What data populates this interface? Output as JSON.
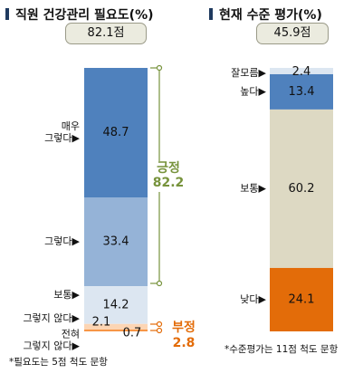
{
  "chart_data": [
    {
      "type": "stacked_bar",
      "title": "직원 건강관리 필요도(%)",
      "summary": "82.1점",
      "unit": "%",
      "segments": [
        {
          "label": "매우\n그렇다▶",
          "value": 48.7,
          "color": "#4f81bd"
        },
        {
          "label": "그렇다▶",
          "value": 33.4,
          "color": "#95b3d7"
        },
        {
          "label": "보통▶",
          "value": 14.2,
          "color": "#dce6f1"
        },
        {
          "label": "그렇지 않다▶",
          "value": 2.1,
          "color": "#fcd5b4"
        },
        {
          "label": "전혀\n그렇지 않다▶",
          "value": 0.7,
          "color": "#f79646"
        }
      ],
      "groups": [
        {
          "label": "긍정",
          "value": "82.2",
          "color": "#77933c"
        },
        {
          "label": "부정",
          "value": "2.8",
          "color": "#e36c09"
        }
      ],
      "footnote": "*필요도는 5점 척도 문항"
    },
    {
      "type": "stacked_bar",
      "title": "현재 수준 평가(%)",
      "summary": "45.9점",
      "unit": "%",
      "segments": [
        {
          "label": "잘모름▶",
          "value": 2.4,
          "color": "#dce6f1"
        },
        {
          "label": "높다▶",
          "value": 13.4,
          "color": "#4f81bd"
        },
        {
          "label": "보통▶",
          "value": 60.2,
          "color": "#ddd9c3"
        },
        {
          "label": "낮다▶",
          "value": 24.1,
          "color": "#e36c09"
        }
      ],
      "footnote": "*수준평가는 11점 척도 문항"
    }
  ],
  "colors": {
    "accent_dark": "#1f3a5f",
    "positive": "#77933c",
    "negative": "#e36c09"
  }
}
